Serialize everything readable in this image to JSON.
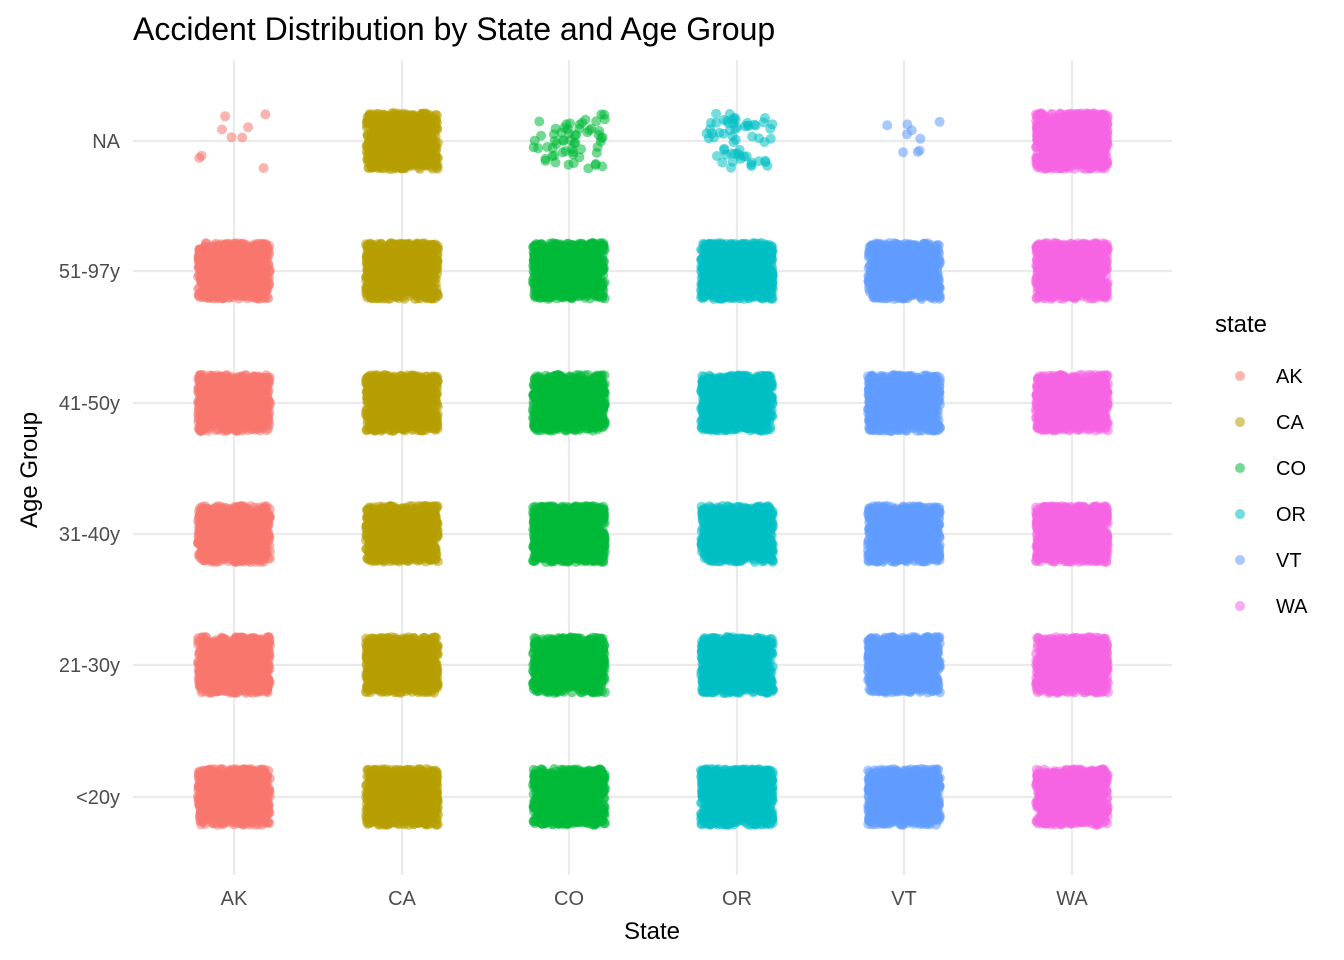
{
  "chart_data": {
    "type": "scatter",
    "title": "Accident Distribution by State and Age Group",
    "xlabel": "State",
    "ylabel": "Age Group",
    "x_categories": [
      "AK",
      "CA",
      "CO",
      "OR",
      "VT",
      "WA"
    ],
    "y_categories": [
      "<20y",
      "21-30y",
      "31-40y",
      "41-50y",
      "51-97y",
      "NA"
    ],
    "jitter": true,
    "grid": true,
    "legend": {
      "title": "state",
      "placement": "right",
      "entries": [
        "AK",
        "CA",
        "CO",
        "OR",
        "VT",
        "WA"
      ]
    },
    "colors": {
      "AK": "#F8766D",
      "CA": "#B79F00",
      "CO": "#00BA38",
      "OR": "#00BFC4",
      "VT": "#619CFF",
      "WA": "#F564E3"
    },
    "point_density": {
      "AK": {
        "<20y": "dense",
        "21-30y": "dense",
        "31-40y": "dense",
        "41-50y": "dense",
        "51-97y": "dense",
        "NA": "sparse"
      },
      "CA": {
        "<20y": "dense",
        "21-30y": "dense",
        "31-40y": "dense",
        "41-50y": "dense",
        "51-97y": "dense",
        "NA": "dense"
      },
      "CO": {
        "<20y": "dense",
        "21-30y": "dense",
        "31-40y": "dense",
        "41-50y": "dense",
        "51-97y": "dense",
        "NA": "medium"
      },
      "OR": {
        "<20y": "dense",
        "21-30y": "dense",
        "31-40y": "dense",
        "41-50y": "dense",
        "51-97y": "dense",
        "NA": "medium"
      },
      "VT": {
        "<20y": "dense",
        "21-30y": "dense",
        "31-40y": "dense",
        "41-50y": "dense",
        "51-97y": "dense",
        "NA": "sparse"
      },
      "WA": {
        "<20y": "dense",
        "21-30y": "dense",
        "31-40y": "dense",
        "41-50y": "dense",
        "51-97y": "dense",
        "NA": "dense"
      }
    }
  }
}
